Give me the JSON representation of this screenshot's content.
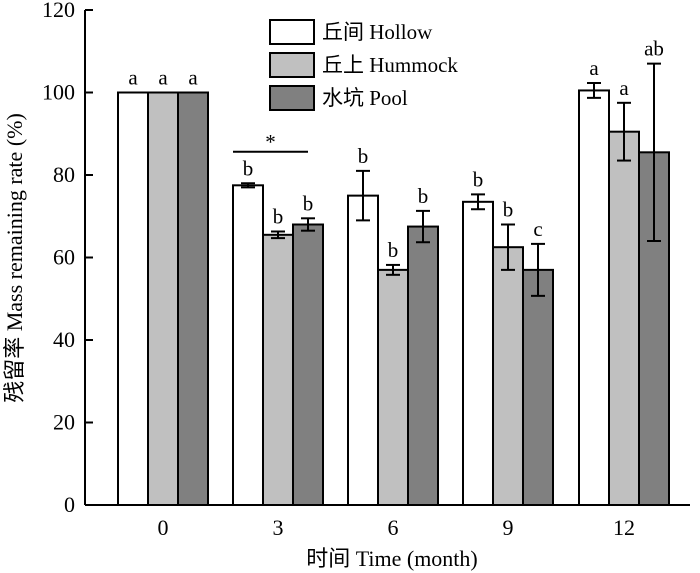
{
  "chart_data": {
    "type": "bar",
    "title": "",
    "xlabel": "时间 Time (month)",
    "ylabel": "残留率 Mass remaining rate (%)",
    "categories": [
      "0",
      "3",
      "6",
      "9",
      "12"
    ],
    "ylim": [
      0,
      120
    ],
    "yticks": [
      "0",
      "20",
      "40",
      "60",
      "80",
      "100",
      "120"
    ],
    "legend_position": "top-center",
    "grid": false,
    "series": [
      {
        "name": "丘间 Hollow",
        "color": "#ffffff",
        "values": [
          100,
          77.5,
          75,
          73.5,
          100.5
        ],
        "errors": [
          0,
          0.5,
          6,
          1.8,
          1.8
        ],
        "letters": [
          "a",
          "b",
          "b",
          "b",
          "a"
        ]
      },
      {
        "name": "丘上 Hummock",
        "color": "#c0c0c0",
        "values": [
          100,
          65.5,
          57,
          62.5,
          90.5
        ],
        "errors": [
          0,
          0.8,
          1.2,
          5.5,
          7
        ],
        "letters": [
          "a",
          "b",
          "b",
          "b",
          "a"
        ]
      },
      {
        "name": "水坑 Pool",
        "color": "#808080",
        "values": [
          100,
          68,
          67.5,
          57,
          85.5
        ],
        "errors": [
          0,
          1.5,
          3.8,
          6.3,
          21.5
        ],
        "letters": [
          "a",
          "b",
          "b",
          "c",
          "ab"
        ]
      }
    ],
    "annotations": [
      {
        "text": "*",
        "category": "3",
        "from_series": 0,
        "to_series": 2,
        "y": 90
      }
    ]
  }
}
